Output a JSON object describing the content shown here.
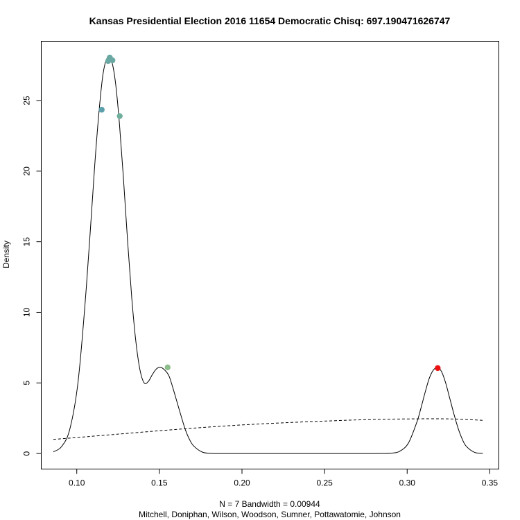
{
  "chart_data": {
    "type": "line",
    "title": "Kansas Presidential Election 2016 11654 Democratic Chisq: 697.190471626747",
    "xlabel": "N = 7   Bandwidth = 0.00944",
    "subtitle": "Mitchell, Doniphan, Wilson, Woodson, Sumner, Pottawatomie, Johnson",
    "ylabel": "Density",
    "xlim": [
      0.0785,
      0.3555
    ],
    "ylim": [
      -1.1,
      29.2
    ],
    "x_ticks": [
      0.1,
      0.15,
      0.2,
      0.25,
      0.3,
      0.35
    ],
    "x_tick_labels": [
      "0.10",
      "0.15",
      "0.20",
      "0.25",
      "0.30",
      "0.35"
    ],
    "y_ticks": [
      0,
      5,
      10,
      15,
      20,
      25
    ],
    "y_tick_labels": [
      "0",
      "5",
      "10",
      "15",
      "20",
      "25"
    ],
    "grid": false,
    "series": [
      {
        "style": "solid",
        "color": "#000000",
        "x": [
          0.0858,
          0.0908,
          0.0958,
          0.1008,
          0.1058,
          0.1108,
          0.1133,
          0.1158,
          0.1183,
          0.1208,
          0.1233,
          0.1258,
          0.1283,
          0.1308,
          0.1333,
          0.1358,
          0.1383,
          0.1408,
          0.1433,
          0.1458,
          0.1483,
          0.1508,
          0.1533,
          0.1558,
          0.1583,
          0.1608,
          0.1633,
          0.1658,
          0.1683,
          0.1708,
          0.1758,
          0.1808,
          0.1858,
          0.1958,
          0.2058,
          0.2208,
          0.2408,
          0.2608,
          0.2808,
          0.2908,
          0.2958,
          0.3008,
          0.3058,
          0.3083,
          0.3108,
          0.3133,
          0.3158,
          0.3183,
          0.3208,
          0.3233,
          0.3258,
          0.3283,
          0.3308,
          0.3333,
          0.3358,
          0.3408,
          0.3458
        ],
        "y": [
          0.12,
          0.49,
          1.73,
          5.1,
          11.8,
          20.3,
          24.0,
          26.8,
          28.0,
          27.9,
          26.4,
          23.4,
          19.4,
          15.0,
          11.0,
          7.9,
          5.9,
          5.0,
          5.1,
          5.6,
          6.0,
          6.1,
          5.9,
          5.5,
          4.6,
          3.6,
          2.6,
          1.66,
          0.98,
          0.53,
          0.11,
          0.01,
          0.0,
          0.0,
          0.0,
          0.0,
          0.0,
          0.0,
          0.0,
          0.03,
          0.18,
          0.75,
          2.2,
          3.2,
          4.3,
          5.3,
          5.9,
          6.1,
          5.8,
          5.0,
          3.9,
          2.8,
          1.8,
          1.03,
          0.51,
          0.08,
          0.01
        ]
      },
      {
        "style": "dashed",
        "color": "#000000",
        "x": [
          0.0858,
          0.1008,
          0.1258,
          0.1508,
          0.1758,
          0.2008,
          0.2258,
          0.2508,
          0.2758,
          0.3008,
          0.3258,
          0.3458
        ],
        "y": [
          1.0,
          1.14,
          1.38,
          1.62,
          1.84,
          2.03,
          2.18,
          2.3,
          2.4,
          2.45,
          2.45,
          2.35
        ]
      }
    ],
    "points": [
      {
        "x": 0.1151,
        "y": 24.35,
        "color": "#5b9fab"
      },
      {
        "x": 0.119,
        "y": 27.8,
        "color": "#6aa9a3"
      },
      {
        "x": 0.12,
        "y": 28.05,
        "color": "#6aa9a3"
      },
      {
        "x": 0.1216,
        "y": 27.85,
        "color": "#6aa9a3"
      },
      {
        "x": 0.126,
        "y": 23.9,
        "color": "#6eae9a"
      },
      {
        "x": 0.155,
        "y": 6.1,
        "color": "#8dbd8b"
      },
      {
        "x": 0.3185,
        "y": 6.05,
        "color": "#ee1111"
      }
    ]
  }
}
